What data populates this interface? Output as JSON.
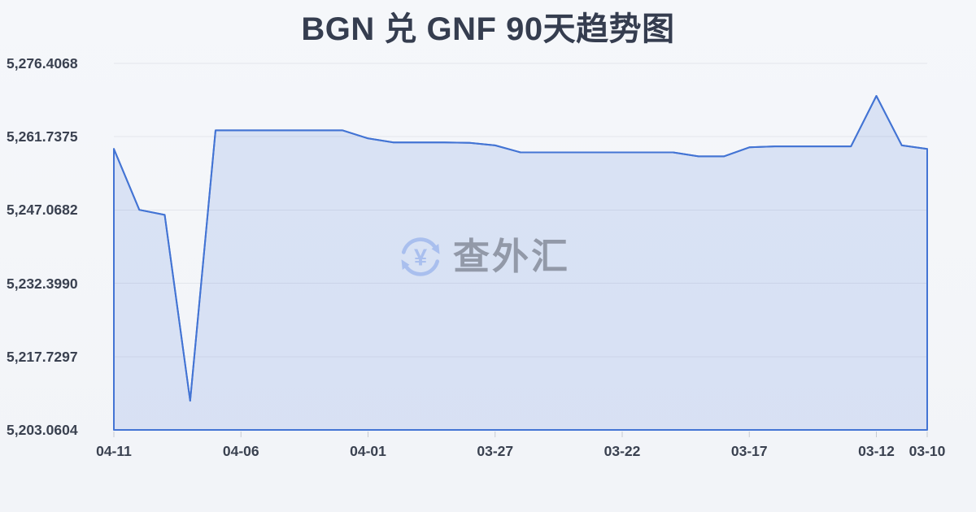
{
  "title": "BGN 兑 GNF 90天趋势图",
  "watermark": {
    "text": "查外汇",
    "icon": "currency-exchange-refresh-icon"
  },
  "colors": {
    "background": "#f4f6f9",
    "line": "#4374d4",
    "area_fill": "rgba(67,116,212,0.15)",
    "grid": "#e3e6ec",
    "tick": "#c6cad2",
    "title_text": "#353d4f",
    "axis_text": "#3a4150",
    "watermark_icon": "#a7beee",
    "watermark_text": "#8f96a4"
  },
  "chart_data": {
    "type": "area",
    "title": "BGN 兑 GNF 90天趋势图",
    "xlabel": "",
    "ylabel": "",
    "grid": true,
    "legend": false,
    "note": "x axis runs newest (04-11) on left to oldest (03-10) on right",
    "x": [
      "04-11",
      "04-10",
      "04-09",
      "04-08",
      "04-07",
      "04-06",
      "04-05",
      "04-04",
      "04-03",
      "04-02",
      "04-01",
      "03-31",
      "03-30",
      "03-29",
      "03-28",
      "03-27",
      "03-26",
      "03-25",
      "03-24",
      "03-23",
      "03-22",
      "03-21",
      "03-20",
      "03-19",
      "03-18",
      "03-17",
      "03-16",
      "03-15",
      "03-14",
      "03-13",
      "03-12",
      "03-11",
      "03-10"
    ],
    "values": [
      5259.3,
      5247.1,
      5246.1,
      5208.9,
      5263.0,
      5263.0,
      5263.0,
      5263.0,
      5263.0,
      5263.0,
      5261.4,
      5260.6,
      5260.6,
      5260.6,
      5260.5,
      5260.0,
      5258.6,
      5258.6,
      5258.6,
      5258.6,
      5258.6,
      5258.6,
      5258.6,
      5257.8,
      5257.8,
      5259.6,
      5259.8,
      5259.8,
      5259.8,
      5259.8,
      5269.9,
      5260.0,
      5259.3
    ],
    "x_tick_labels": [
      "04-11",
      "04-06",
      "04-01",
      "03-27",
      "03-22",
      "03-17",
      "03-12",
      "03-10"
    ],
    "x_tick_indices": [
      0,
      5,
      10,
      15,
      20,
      25,
      30,
      32
    ],
    "y_tick_labels": [
      "5,276.4068",
      "5,261.7375",
      "5,247.0682",
      "5,232.3990",
      "5,217.7297",
      "5,203.0604"
    ],
    "y_ticks": [
      5276.4068,
      5261.7375,
      5247.0682,
      5232.399,
      5217.7297,
      5203.0604
    ],
    "ylim": [
      5203.0604,
      5276.4068
    ]
  }
}
